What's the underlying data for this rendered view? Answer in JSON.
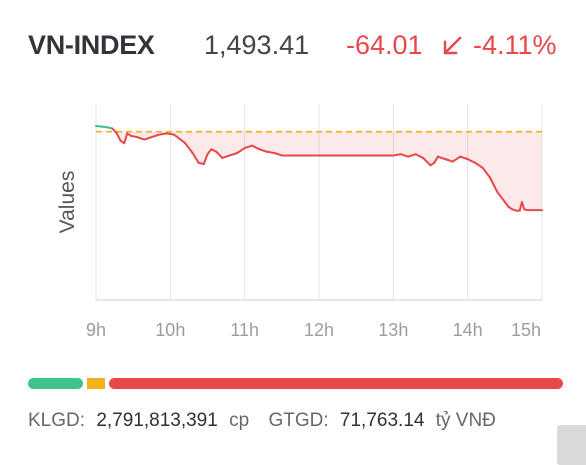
{
  "index": {
    "name": "VN-INDEX",
    "value": "1,493.41",
    "change": "-64.01",
    "change_pct": "-4.11%",
    "direction_icon": "arrow-down-left-icon",
    "up_color": "#3cc48a",
    "down_color": "#e8474b",
    "ref_color": "#f0b41a"
  },
  "chart_data": {
    "type": "line",
    "ylabel": "Values",
    "x_ticks": [
      "9h",
      "10h",
      "11h",
      "12h",
      "13h",
      "14h",
      "15h"
    ],
    "reference_value": 1557.42,
    "ylim": [
      1420,
      1580
    ],
    "series": [
      {
        "x": [
          9.0,
          9.08,
          9.15,
          9.22,
          9.28,
          9.33,
          9.38,
          9.42,
          9.47,
          9.55,
          9.65,
          9.75,
          9.85,
          9.95,
          10.05,
          10.2,
          10.3,
          10.38,
          10.45,
          10.5,
          10.55,
          10.62,
          10.7,
          10.8,
          10.9,
          11.0,
          11.1,
          11.2,
          11.3,
          11.4,
          11.5,
          12.0,
          12.5,
          13.0,
          13.1,
          13.2,
          13.3,
          13.4,
          13.5,
          13.55,
          13.6,
          13.7,
          13.8,
          13.9,
          14.0,
          14.1,
          14.2,
          14.3,
          14.4,
          14.5,
          14.55,
          14.6,
          14.65,
          14.7,
          14.73,
          14.76,
          14.8,
          14.9,
          15.0
        ],
        "y": [
          1562,
          1561.5,
          1561,
          1560,
          1556,
          1550,
          1548,
          1556,
          1554,
          1553,
          1551,
          1553,
          1555,
          1556,
          1555,
          1548,
          1540,
          1532,
          1531,
          1539,
          1543,
          1541,
          1536,
          1538,
          1540,
          1544,
          1546,
          1543,
          1541,
          1540,
          1538,
          1538,
          1538,
          1538,
          1539,
          1537,
          1539,
          1536,
          1530,
          1532,
          1537,
          1535,
          1533,
          1537,
          1535,
          1532,
          1528,
          1520,
          1508,
          1500,
          1496,
          1494,
          1493,
          1493,
          1500,
          1494,
          1493.41,
          1493.41,
          1493.41
        ]
      }
    ]
  },
  "breadth": {
    "advancers": 48,
    "unchanged": 16,
    "decliners": 396,
    "colors": [
      "#3cc48a",
      "#f0b41a",
      "#e8474b"
    ]
  },
  "footer": {
    "klgd_label": "KLGD:",
    "klgd_value": "2,791,813,391",
    "klgd_unit": "cp",
    "gtgd_label": "GTGD:",
    "gtgd_value": "71,763.14",
    "gtgd_unit": "tỷ VNĐ"
  }
}
